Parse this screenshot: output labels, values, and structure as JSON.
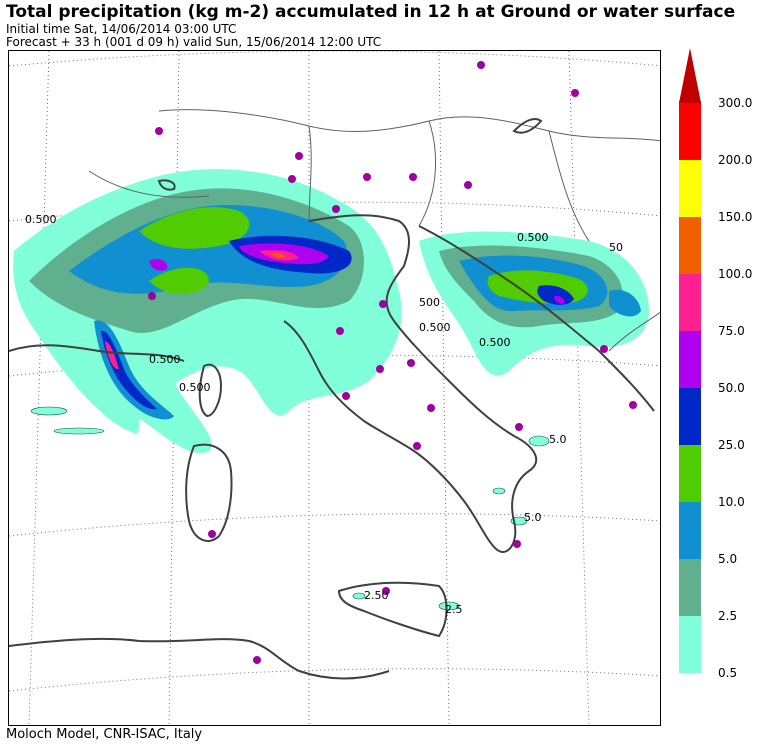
{
  "header": {
    "title": "Total precipitation (kg m-2) accumulated in  12 h at Ground or water surface",
    "initial_time": "Initial time  Sat, 14/06/2014  03:00 UTC",
    "forecast": "Forecast  +  33 h  (001 d 09 h)  valid Sun, 15/06/2014 12:00 UTC"
  },
  "footer": {
    "credit": "Moloch Model, CNR-ISAC, Italy"
  },
  "colorbar": {
    "levels": [
      {
        "label": "0.5",
        "color": "#80ffd8"
      },
      {
        "label": "2.5",
        "color": "#60b090"
      },
      {
        "label": "5.0",
        "color": "#1090d0"
      },
      {
        "label": "10.0",
        "color": "#50cc00"
      },
      {
        "label": "25.0",
        "color": "#0028c8"
      },
      {
        "label": "50.0",
        "color": "#b000f0"
      },
      {
        "label": "75.0",
        "color": "#ff2090"
      },
      {
        "label": "100.0",
        "color": "#f06000"
      },
      {
        "label": "150.0",
        "color": "#ffff00"
      },
      {
        "label": "200.0",
        "color": "#ff0000"
      },
      {
        "label": "300.0",
        "color": "#c00000"
      }
    ]
  },
  "contour_labels": [
    "0.500",
    "0.500",
    "0.500",
    "0.500",
    "0.500",
    "0.500",
    "50",
    "500",
    "5.0",
    "2.50",
    "2.5",
    "5.0"
  ],
  "colors": {
    "coast": "#404040",
    "border": "#606060",
    "city_marker": "#a000a0",
    "grid": "#606060"
  }
}
